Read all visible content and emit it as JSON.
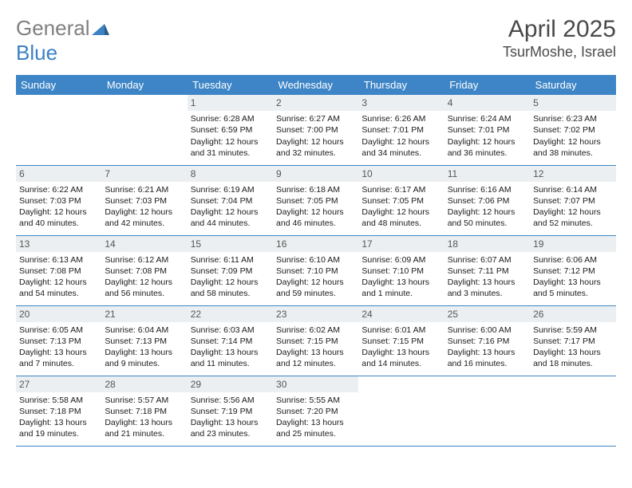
{
  "brand": {
    "part1": "General",
    "part2": "Blue"
  },
  "month_title": "April 2025",
  "location": "TsurMoshe, Israel",
  "colors": {
    "header_bg": "#3d85c6",
    "header_text": "#ffffff",
    "daynum_bg": "#eceff1",
    "daynum_text": "#555555",
    "border": "#3d85c6",
    "logo_gray": "#808080",
    "logo_blue": "#3b82c4",
    "title_color": "#4a4a4a"
  },
  "day_headers": [
    "Sunday",
    "Monday",
    "Tuesday",
    "Wednesday",
    "Thursday",
    "Friday",
    "Saturday"
  ],
  "weeks": [
    [
      {
        "n": "",
        "sr": "",
        "ss": "",
        "dl1": "",
        "dl2": ""
      },
      {
        "n": "",
        "sr": "",
        "ss": "",
        "dl1": "",
        "dl2": ""
      },
      {
        "n": "1",
        "sr": "Sunrise: 6:28 AM",
        "ss": "Sunset: 6:59 PM",
        "dl1": "Daylight: 12 hours",
        "dl2": "and 31 minutes."
      },
      {
        "n": "2",
        "sr": "Sunrise: 6:27 AM",
        "ss": "Sunset: 7:00 PM",
        "dl1": "Daylight: 12 hours",
        "dl2": "and 32 minutes."
      },
      {
        "n": "3",
        "sr": "Sunrise: 6:26 AM",
        "ss": "Sunset: 7:01 PM",
        "dl1": "Daylight: 12 hours",
        "dl2": "and 34 minutes."
      },
      {
        "n": "4",
        "sr": "Sunrise: 6:24 AM",
        "ss": "Sunset: 7:01 PM",
        "dl1": "Daylight: 12 hours",
        "dl2": "and 36 minutes."
      },
      {
        "n": "5",
        "sr": "Sunrise: 6:23 AM",
        "ss": "Sunset: 7:02 PM",
        "dl1": "Daylight: 12 hours",
        "dl2": "and 38 minutes."
      }
    ],
    [
      {
        "n": "6",
        "sr": "Sunrise: 6:22 AM",
        "ss": "Sunset: 7:03 PM",
        "dl1": "Daylight: 12 hours",
        "dl2": "and 40 minutes."
      },
      {
        "n": "7",
        "sr": "Sunrise: 6:21 AM",
        "ss": "Sunset: 7:03 PM",
        "dl1": "Daylight: 12 hours",
        "dl2": "and 42 minutes."
      },
      {
        "n": "8",
        "sr": "Sunrise: 6:19 AM",
        "ss": "Sunset: 7:04 PM",
        "dl1": "Daylight: 12 hours",
        "dl2": "and 44 minutes."
      },
      {
        "n": "9",
        "sr": "Sunrise: 6:18 AM",
        "ss": "Sunset: 7:05 PM",
        "dl1": "Daylight: 12 hours",
        "dl2": "and 46 minutes."
      },
      {
        "n": "10",
        "sr": "Sunrise: 6:17 AM",
        "ss": "Sunset: 7:05 PM",
        "dl1": "Daylight: 12 hours",
        "dl2": "and 48 minutes."
      },
      {
        "n": "11",
        "sr": "Sunrise: 6:16 AM",
        "ss": "Sunset: 7:06 PM",
        "dl1": "Daylight: 12 hours",
        "dl2": "and 50 minutes."
      },
      {
        "n": "12",
        "sr": "Sunrise: 6:14 AM",
        "ss": "Sunset: 7:07 PM",
        "dl1": "Daylight: 12 hours",
        "dl2": "and 52 minutes."
      }
    ],
    [
      {
        "n": "13",
        "sr": "Sunrise: 6:13 AM",
        "ss": "Sunset: 7:08 PM",
        "dl1": "Daylight: 12 hours",
        "dl2": "and 54 minutes."
      },
      {
        "n": "14",
        "sr": "Sunrise: 6:12 AM",
        "ss": "Sunset: 7:08 PM",
        "dl1": "Daylight: 12 hours",
        "dl2": "and 56 minutes."
      },
      {
        "n": "15",
        "sr": "Sunrise: 6:11 AM",
        "ss": "Sunset: 7:09 PM",
        "dl1": "Daylight: 12 hours",
        "dl2": "and 58 minutes."
      },
      {
        "n": "16",
        "sr": "Sunrise: 6:10 AM",
        "ss": "Sunset: 7:10 PM",
        "dl1": "Daylight: 12 hours",
        "dl2": "and 59 minutes."
      },
      {
        "n": "17",
        "sr": "Sunrise: 6:09 AM",
        "ss": "Sunset: 7:10 PM",
        "dl1": "Daylight: 13 hours",
        "dl2": "and 1 minute."
      },
      {
        "n": "18",
        "sr": "Sunrise: 6:07 AM",
        "ss": "Sunset: 7:11 PM",
        "dl1": "Daylight: 13 hours",
        "dl2": "and 3 minutes."
      },
      {
        "n": "19",
        "sr": "Sunrise: 6:06 AM",
        "ss": "Sunset: 7:12 PM",
        "dl1": "Daylight: 13 hours",
        "dl2": "and 5 minutes."
      }
    ],
    [
      {
        "n": "20",
        "sr": "Sunrise: 6:05 AM",
        "ss": "Sunset: 7:13 PM",
        "dl1": "Daylight: 13 hours",
        "dl2": "and 7 minutes."
      },
      {
        "n": "21",
        "sr": "Sunrise: 6:04 AM",
        "ss": "Sunset: 7:13 PM",
        "dl1": "Daylight: 13 hours",
        "dl2": "and 9 minutes."
      },
      {
        "n": "22",
        "sr": "Sunrise: 6:03 AM",
        "ss": "Sunset: 7:14 PM",
        "dl1": "Daylight: 13 hours",
        "dl2": "and 11 minutes."
      },
      {
        "n": "23",
        "sr": "Sunrise: 6:02 AM",
        "ss": "Sunset: 7:15 PM",
        "dl1": "Daylight: 13 hours",
        "dl2": "and 12 minutes."
      },
      {
        "n": "24",
        "sr": "Sunrise: 6:01 AM",
        "ss": "Sunset: 7:15 PM",
        "dl1": "Daylight: 13 hours",
        "dl2": "and 14 minutes."
      },
      {
        "n": "25",
        "sr": "Sunrise: 6:00 AM",
        "ss": "Sunset: 7:16 PM",
        "dl1": "Daylight: 13 hours",
        "dl2": "and 16 minutes."
      },
      {
        "n": "26",
        "sr": "Sunrise: 5:59 AM",
        "ss": "Sunset: 7:17 PM",
        "dl1": "Daylight: 13 hours",
        "dl2": "and 18 minutes."
      }
    ],
    [
      {
        "n": "27",
        "sr": "Sunrise: 5:58 AM",
        "ss": "Sunset: 7:18 PM",
        "dl1": "Daylight: 13 hours",
        "dl2": "and 19 minutes."
      },
      {
        "n": "28",
        "sr": "Sunrise: 5:57 AM",
        "ss": "Sunset: 7:18 PM",
        "dl1": "Daylight: 13 hours",
        "dl2": "and 21 minutes."
      },
      {
        "n": "29",
        "sr": "Sunrise: 5:56 AM",
        "ss": "Sunset: 7:19 PM",
        "dl1": "Daylight: 13 hours",
        "dl2": "and 23 minutes."
      },
      {
        "n": "30",
        "sr": "Sunrise: 5:55 AM",
        "ss": "Sunset: 7:20 PM",
        "dl1": "Daylight: 13 hours",
        "dl2": "and 25 minutes."
      },
      {
        "n": "",
        "sr": "",
        "ss": "",
        "dl1": "",
        "dl2": ""
      },
      {
        "n": "",
        "sr": "",
        "ss": "",
        "dl1": "",
        "dl2": ""
      },
      {
        "n": "",
        "sr": "",
        "ss": "",
        "dl1": "",
        "dl2": ""
      }
    ]
  ]
}
